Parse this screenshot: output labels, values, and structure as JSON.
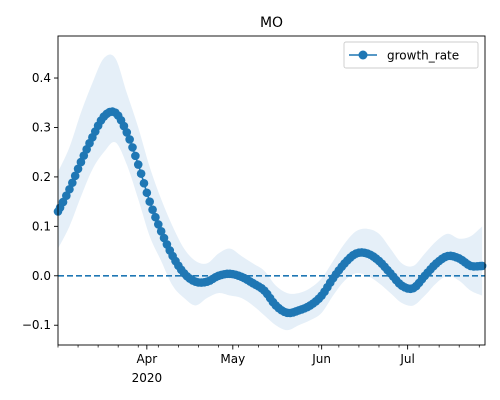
{
  "chart_data": {
    "type": "line",
    "title": "MO",
    "xlabel": "",
    "ylabel": "",
    "x_axis": {
      "type": "date",
      "range": [
        "2020-03-01",
        "2020-07-28"
      ],
      "major_ticks": [
        {
          "date": "2020-04-01",
          "label": "Apr",
          "sublabel": "2020"
        },
        {
          "date": "2020-05-01",
          "label": "May",
          "sublabel": ""
        },
        {
          "date": "2020-06-01",
          "label": "Jun",
          "sublabel": ""
        },
        {
          "date": "2020-07-01",
          "label": "Jul",
          "sublabel": ""
        }
      ]
    },
    "y_axis": {
      "range": [
        -0.14,
        0.485
      ],
      "ticks": [
        -0.1,
        0.0,
        0.1,
        0.2,
        0.3,
        0.4
      ],
      "tick_labels": [
        "−0.1",
        "0.0",
        "0.1",
        "0.2",
        "0.3",
        "0.4"
      ]
    },
    "grid": false,
    "legend": {
      "position": "upper-right",
      "entries": [
        "growth_rate"
      ]
    },
    "reference_line": {
      "y": 0.0,
      "style": "dashed",
      "color": "#1f77b4"
    },
    "colors": {
      "series": "#1f77b4",
      "band": "#dce9f5"
    },
    "series": [
      {
        "name": "growth_rate",
        "x": [
          "2020-03-01",
          "2020-03-05",
          "2020-03-09",
          "2020-03-13",
          "2020-03-17",
          "2020-03-21",
          "2020-03-25",
          "2020-03-29",
          "2020-04-02",
          "2020-04-06",
          "2020-04-10",
          "2020-04-14",
          "2020-04-18",
          "2020-04-22",
          "2020-04-26",
          "2020-04-30",
          "2020-05-04",
          "2020-05-08",
          "2020-05-12",
          "2020-05-16",
          "2020-05-20",
          "2020-05-24",
          "2020-05-28",
          "2020-06-01",
          "2020-06-05",
          "2020-06-09",
          "2020-06-13",
          "2020-06-17",
          "2020-06-21",
          "2020-06-25",
          "2020-06-29",
          "2020-07-03",
          "2020-07-07",
          "2020-07-11",
          "2020-07-15",
          "2020-07-19",
          "2020-07-23",
          "2020-07-27"
        ],
        "values": [
          0.13,
          0.175,
          0.23,
          0.28,
          0.322,
          0.33,
          0.29,
          0.225,
          0.15,
          0.09,
          0.04,
          0.005,
          -0.012,
          -0.012,
          0.0,
          0.004,
          -0.002,
          -0.015,
          -0.03,
          -0.06,
          -0.075,
          -0.07,
          -0.06,
          -0.04,
          -0.005,
          0.025,
          0.045,
          0.045,
          0.03,
          0.005,
          -0.02,
          -0.025,
          0.0,
          0.025,
          0.04,
          0.035,
          0.02,
          0.02
        ],
        "lower": [
          0.055,
          0.1,
          0.16,
          0.215,
          0.25,
          0.27,
          0.225,
          0.155,
          0.08,
          0.03,
          -0.02,
          -0.045,
          -0.06,
          -0.045,
          -0.035,
          -0.04,
          -0.045,
          -0.06,
          -0.08,
          -0.1,
          -0.11,
          -0.1,
          -0.09,
          -0.075,
          -0.04,
          -0.01,
          0.005,
          0.0,
          -0.015,
          -0.035,
          -0.055,
          -0.06,
          -0.04,
          -0.015,
          0.0,
          -0.01,
          -0.03,
          -0.04
        ],
        "upper": [
          0.21,
          0.26,
          0.33,
          0.39,
          0.44,
          0.44,
          0.37,
          0.3,
          0.22,
          0.155,
          0.1,
          0.055,
          0.03,
          0.025,
          0.045,
          0.055,
          0.04,
          0.025,
          0.01,
          -0.02,
          -0.035,
          -0.035,
          -0.025,
          -0.005,
          0.03,
          0.065,
          0.09,
          0.095,
          0.085,
          0.055,
          0.025,
          0.02,
          0.045,
          0.07,
          0.085,
          0.075,
          0.08,
          0.1
        ]
      }
    ]
  }
}
